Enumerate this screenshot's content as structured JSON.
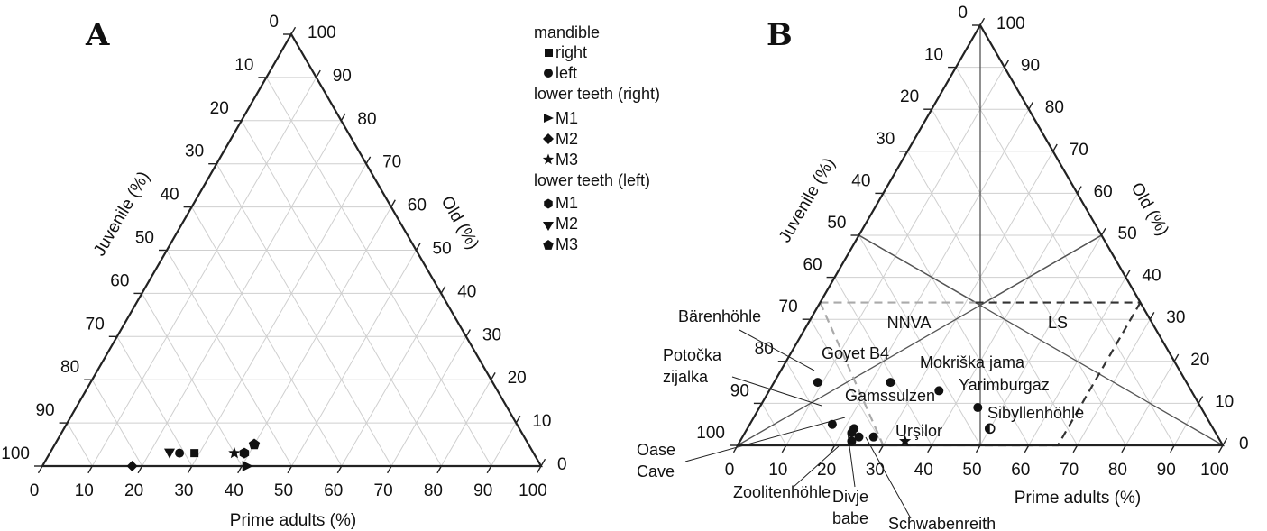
{
  "panels": [
    {
      "id": "A",
      "letter": "A"
    },
    {
      "id": "B",
      "letter": "B"
    }
  ],
  "axes": {
    "juvenile": "Juvenile (%)",
    "old": "Old (%)",
    "prime": "Prime adults (%)",
    "ticks": [
      "0",
      "10",
      "20",
      "30",
      "40",
      "50",
      "60",
      "70",
      "80",
      "90",
      "100"
    ]
  },
  "legend": {
    "groups": [
      {
        "title": "mandible",
        "items": [
          {
            "symbol": "square",
            "label": "right"
          },
          {
            "symbol": "circle",
            "label": "left"
          }
        ]
      },
      {
        "title": "lower teeth (right)",
        "items": [
          {
            "symbol": "triangle-right",
            "label": "M1"
          },
          {
            "symbol": "diamond",
            "label": "M2"
          },
          {
            "symbol": "star",
            "label": "M3"
          }
        ]
      },
      {
        "title": "lower teeth (left)",
        "items": [
          {
            "symbol": "hexagon",
            "label": "M1"
          },
          {
            "symbol": "triangle-down",
            "label": "M2"
          },
          {
            "symbol": "pentagon",
            "label": "M3"
          }
        ]
      }
    ]
  },
  "zones": {
    "nnva": "NNVA",
    "ls": "LS"
  },
  "chart_data": [
    {
      "panel": "A",
      "type": "scatter",
      "subtype": "ternary",
      "axes": {
        "bottom": "Prime adults (%)",
        "left": "Juvenile (%)",
        "right": "Old (%)"
      },
      "range": [
        0,
        100
      ],
      "grid": true,
      "legend_placement": "top-right",
      "points": [
        {
          "element": "mandible right",
          "symbol": "square",
          "juvenile": 68,
          "prime": 29,
          "old": 3
        },
        {
          "element": "mandible left",
          "symbol": "circle",
          "juvenile": 71,
          "prime": 26,
          "old": 3
        },
        {
          "element": "lower teeth (right) M1",
          "symbol": "triangle-right",
          "juvenile": 59,
          "prime": 41,
          "old": 0
        },
        {
          "element": "lower teeth (right) M2",
          "symbol": "diamond",
          "juvenile": 82,
          "prime": 18,
          "old": 0
        },
        {
          "element": "lower teeth (right) M3",
          "symbol": "star",
          "juvenile": 60,
          "prime": 37,
          "old": 3
        },
        {
          "element": "lower teeth (left) M1",
          "symbol": "hexagon",
          "juvenile": 58,
          "prime": 39,
          "old": 3
        },
        {
          "element": "lower teeth (left) M2",
          "symbol": "triangle-down",
          "juvenile": 73,
          "prime": 24,
          "old": 3
        },
        {
          "element": "lower teeth (left) M3",
          "symbol": "pentagon",
          "juvenile": 55,
          "prime": 40,
          "old": 5
        }
      ]
    },
    {
      "panel": "B",
      "type": "scatter",
      "subtype": "ternary",
      "axes": {
        "bottom": "Prime adults (%)",
        "left": "Juvenile (%)",
        "right": "Old (%)"
      },
      "range": [
        0,
        100
      ],
      "grid": true,
      "zones": [
        "NNVA",
        "LS"
      ],
      "points": [
        {
          "site": "Bärenhöhle",
          "symbol": "circle",
          "juvenile": 76,
          "prime": 9,
          "old": 15
        },
        {
          "site": "Goyet B4",
          "symbol": "circle",
          "juvenile": 61,
          "prime": 24,
          "old": 15
        },
        {
          "site": "Mokriška jama",
          "symbol": "circle",
          "juvenile": 52,
          "prime": 35,
          "old": 13
        },
        {
          "site": "Yarimburgaz",
          "symbol": "circle",
          "juvenile": 46,
          "prime": 45,
          "old": 9
        },
        {
          "site": "Sibyllenhöhle",
          "symbol": "half-circle",
          "juvenile": 46,
          "prime": 50,
          "old": 4
        },
        {
          "site": "Potočka zijalka",
          "symbol": "circle",
          "juvenile": 78,
          "prime": 17,
          "old": 5
        },
        {
          "site": "Gamssulzen",
          "symbol": "circle",
          "juvenile": 74,
          "prime": 22,
          "old": 4
        },
        {
          "site": "Gamssulzen",
          "symbol": "circle",
          "juvenile": 75,
          "prime": 22,
          "old": 3
        },
        {
          "site": "Zoolitenhöhle",
          "symbol": "circle",
          "juvenile": 76,
          "prime": 23,
          "old": 1
        },
        {
          "site": "Divje babe",
          "symbol": "circle",
          "juvenile": 74,
          "prime": 24,
          "old": 2
        },
        {
          "site": "Schwabenreith",
          "symbol": "circle",
          "juvenile": 71,
          "prime": 27,
          "old": 2
        },
        {
          "site": "Urşilor",
          "symbol": "star",
          "juvenile": 65,
          "prime": 34,
          "old": 1
        }
      ],
      "labels": [
        "Bärenhöhle",
        "Goyet B4",
        "Mokriška jama",
        "Yarimburgaz",
        "Sibyllenhöhle",
        "Potočka zijalka",
        "Gamssulzen",
        "Urşilor",
        "Oase Cave",
        "Zoolitenhöhle",
        "Divje babe",
        "Schwabenreith"
      ]
    }
  ]
}
